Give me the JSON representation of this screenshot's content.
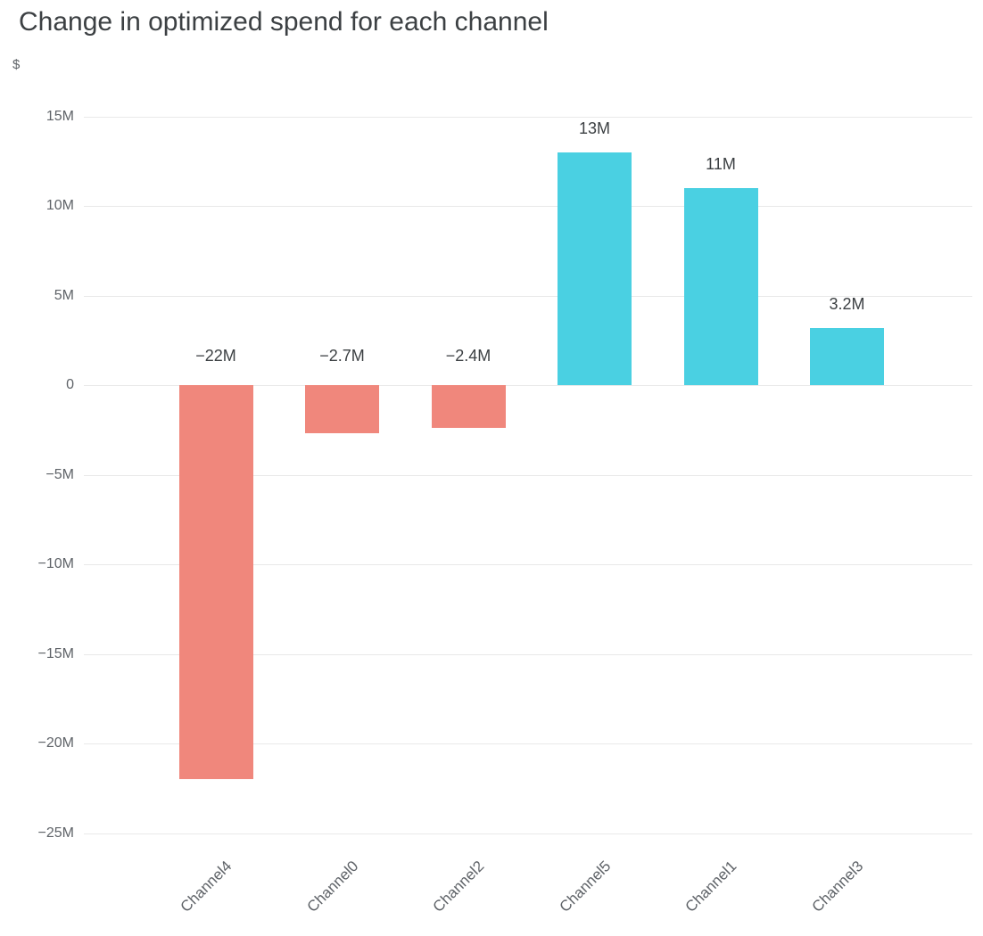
{
  "title": "Change in optimized spend for each channel",
  "chart_data": {
    "type": "bar",
    "title": "Change in optimized spend for each channel",
    "ylabel": "$",
    "xlabel": "",
    "values_unit": "millions of dollars",
    "categories": [
      "Channel4",
      "Channel0",
      "Channel2",
      "Channel5",
      "Channel1",
      "Channel3"
    ],
    "values": [
      -22,
      -2.7,
      -2.4,
      13,
      11,
      3.2
    ],
    "bar_labels": [
      "−22M",
      "−2.7M",
      "−2.4M",
      "13M",
      "11M",
      "3.2M"
    ],
    "y_ticks": [
      {
        "value": 15,
        "label": "15M"
      },
      {
        "value": 10,
        "label": "10M"
      },
      {
        "value": 5,
        "label": "5M"
      },
      {
        "value": 0,
        "label": "0"
      },
      {
        "value": -5,
        "label": "−5M"
      },
      {
        "value": -10,
        "label": "−10M"
      },
      {
        "value": -15,
        "label": "−15M"
      },
      {
        "value": -20,
        "label": "−20M"
      },
      {
        "value": -25,
        "label": "−25M"
      }
    ],
    "ylim": [
      -25.5,
      16
    ],
    "grid": true,
    "legend": false,
    "colors": {
      "negative": "#f0877c",
      "positive": "#4ad0e2"
    }
  }
}
